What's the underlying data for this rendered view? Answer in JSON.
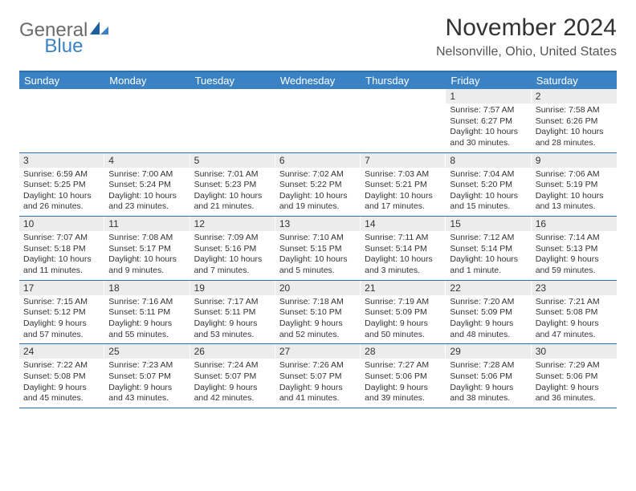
{
  "brand": {
    "part1": "General",
    "part2": "Blue"
  },
  "title": "November 2024",
  "location": "Nelsonville, Ohio, United States",
  "colors": {
    "header_blue": "#3b82c4",
    "rule_blue": "#2d6fad",
    "band_gray": "#ececec",
    "text": "#333333"
  },
  "dow": [
    "Sunday",
    "Monday",
    "Tuesday",
    "Wednesday",
    "Thursday",
    "Friday",
    "Saturday"
  ],
  "weeks": [
    [
      {
        "empty": true
      },
      {
        "empty": true
      },
      {
        "empty": true
      },
      {
        "empty": true
      },
      {
        "empty": true
      },
      {
        "num": "1",
        "sunrise": "Sunrise: 7:57 AM",
        "sunset": "Sunset: 6:27 PM",
        "daylight": "Daylight: 10 hours and 30 minutes."
      },
      {
        "num": "2",
        "sunrise": "Sunrise: 7:58 AM",
        "sunset": "Sunset: 6:26 PM",
        "daylight": "Daylight: 10 hours and 28 minutes."
      }
    ],
    [
      {
        "num": "3",
        "sunrise": "Sunrise: 6:59 AM",
        "sunset": "Sunset: 5:25 PM",
        "daylight": "Daylight: 10 hours and 26 minutes."
      },
      {
        "num": "4",
        "sunrise": "Sunrise: 7:00 AM",
        "sunset": "Sunset: 5:24 PM",
        "daylight": "Daylight: 10 hours and 23 minutes."
      },
      {
        "num": "5",
        "sunrise": "Sunrise: 7:01 AM",
        "sunset": "Sunset: 5:23 PM",
        "daylight": "Daylight: 10 hours and 21 minutes."
      },
      {
        "num": "6",
        "sunrise": "Sunrise: 7:02 AM",
        "sunset": "Sunset: 5:22 PM",
        "daylight": "Daylight: 10 hours and 19 minutes."
      },
      {
        "num": "7",
        "sunrise": "Sunrise: 7:03 AM",
        "sunset": "Sunset: 5:21 PM",
        "daylight": "Daylight: 10 hours and 17 minutes."
      },
      {
        "num": "8",
        "sunrise": "Sunrise: 7:04 AM",
        "sunset": "Sunset: 5:20 PM",
        "daylight": "Daylight: 10 hours and 15 minutes."
      },
      {
        "num": "9",
        "sunrise": "Sunrise: 7:06 AM",
        "sunset": "Sunset: 5:19 PM",
        "daylight": "Daylight: 10 hours and 13 minutes."
      }
    ],
    [
      {
        "num": "10",
        "sunrise": "Sunrise: 7:07 AM",
        "sunset": "Sunset: 5:18 PM",
        "daylight": "Daylight: 10 hours and 11 minutes."
      },
      {
        "num": "11",
        "sunrise": "Sunrise: 7:08 AM",
        "sunset": "Sunset: 5:17 PM",
        "daylight": "Daylight: 10 hours and 9 minutes."
      },
      {
        "num": "12",
        "sunrise": "Sunrise: 7:09 AM",
        "sunset": "Sunset: 5:16 PM",
        "daylight": "Daylight: 10 hours and 7 minutes."
      },
      {
        "num": "13",
        "sunrise": "Sunrise: 7:10 AM",
        "sunset": "Sunset: 5:15 PM",
        "daylight": "Daylight: 10 hours and 5 minutes."
      },
      {
        "num": "14",
        "sunrise": "Sunrise: 7:11 AM",
        "sunset": "Sunset: 5:14 PM",
        "daylight": "Daylight: 10 hours and 3 minutes."
      },
      {
        "num": "15",
        "sunrise": "Sunrise: 7:12 AM",
        "sunset": "Sunset: 5:14 PM",
        "daylight": "Daylight: 10 hours and 1 minute."
      },
      {
        "num": "16",
        "sunrise": "Sunrise: 7:14 AM",
        "sunset": "Sunset: 5:13 PM",
        "daylight": "Daylight: 9 hours and 59 minutes."
      }
    ],
    [
      {
        "num": "17",
        "sunrise": "Sunrise: 7:15 AM",
        "sunset": "Sunset: 5:12 PM",
        "daylight": "Daylight: 9 hours and 57 minutes."
      },
      {
        "num": "18",
        "sunrise": "Sunrise: 7:16 AM",
        "sunset": "Sunset: 5:11 PM",
        "daylight": "Daylight: 9 hours and 55 minutes."
      },
      {
        "num": "19",
        "sunrise": "Sunrise: 7:17 AM",
        "sunset": "Sunset: 5:11 PM",
        "daylight": "Daylight: 9 hours and 53 minutes."
      },
      {
        "num": "20",
        "sunrise": "Sunrise: 7:18 AM",
        "sunset": "Sunset: 5:10 PM",
        "daylight": "Daylight: 9 hours and 52 minutes."
      },
      {
        "num": "21",
        "sunrise": "Sunrise: 7:19 AM",
        "sunset": "Sunset: 5:09 PM",
        "daylight": "Daylight: 9 hours and 50 minutes."
      },
      {
        "num": "22",
        "sunrise": "Sunrise: 7:20 AM",
        "sunset": "Sunset: 5:09 PM",
        "daylight": "Daylight: 9 hours and 48 minutes."
      },
      {
        "num": "23",
        "sunrise": "Sunrise: 7:21 AM",
        "sunset": "Sunset: 5:08 PM",
        "daylight": "Daylight: 9 hours and 47 minutes."
      }
    ],
    [
      {
        "num": "24",
        "sunrise": "Sunrise: 7:22 AM",
        "sunset": "Sunset: 5:08 PM",
        "daylight": "Daylight: 9 hours and 45 minutes."
      },
      {
        "num": "25",
        "sunrise": "Sunrise: 7:23 AM",
        "sunset": "Sunset: 5:07 PM",
        "daylight": "Daylight: 9 hours and 43 minutes."
      },
      {
        "num": "26",
        "sunrise": "Sunrise: 7:24 AM",
        "sunset": "Sunset: 5:07 PM",
        "daylight": "Daylight: 9 hours and 42 minutes."
      },
      {
        "num": "27",
        "sunrise": "Sunrise: 7:26 AM",
        "sunset": "Sunset: 5:07 PM",
        "daylight": "Daylight: 9 hours and 41 minutes."
      },
      {
        "num": "28",
        "sunrise": "Sunrise: 7:27 AM",
        "sunset": "Sunset: 5:06 PM",
        "daylight": "Daylight: 9 hours and 39 minutes."
      },
      {
        "num": "29",
        "sunrise": "Sunrise: 7:28 AM",
        "sunset": "Sunset: 5:06 PM",
        "daylight": "Daylight: 9 hours and 38 minutes."
      },
      {
        "num": "30",
        "sunrise": "Sunrise: 7:29 AM",
        "sunset": "Sunset: 5:06 PM",
        "daylight": "Daylight: 9 hours and 36 minutes."
      }
    ]
  ]
}
